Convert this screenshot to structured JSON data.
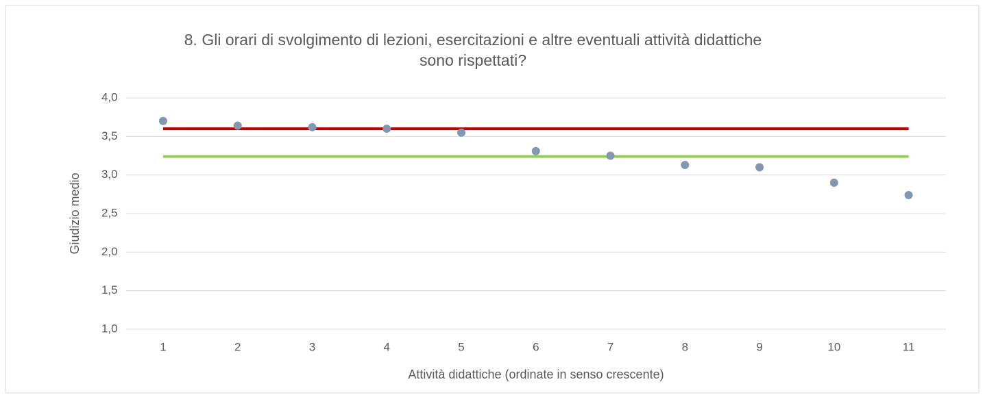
{
  "chart_data": {
    "type": "scatter",
    "title": [
      "8. Gli orari di svolgimento di lezioni, esercitazioni e altre eventuali attività didattiche",
      "sono rispettati?"
    ],
    "xlabel": "Attività didattiche (ordinate in senso crescente)",
    "ylabel": "Giudizio medio",
    "x": [
      1,
      2,
      3,
      4,
      5,
      6,
      7,
      8,
      9,
      10,
      11
    ],
    "series": [
      {
        "type": "scatter",
        "color": "#8497b0",
        "values": [
          3.7,
          3.64,
          3.62,
          3.6,
          3.55,
          3.31,
          3.25,
          3.13,
          3.1,
          2.9,
          2.74
        ]
      },
      {
        "type": "line",
        "color": "#c00000",
        "values": [
          3.6,
          3.6,
          3.6,
          3.6,
          3.6,
          3.6,
          3.6,
          3.6,
          3.6,
          3.6,
          3.6
        ]
      },
      {
        "type": "line",
        "color": "#92d050",
        "values": [
          3.24,
          3.24,
          3.24,
          3.24,
          3.24,
          3.24,
          3.24,
          3.24,
          3.24,
          3.24,
          3.24
        ]
      }
    ],
    "xlim": [
      0.5,
      11.5
    ],
    "xticks": [
      1,
      2,
      3,
      4,
      5,
      6,
      7,
      8,
      9,
      10,
      11
    ],
    "ylim": [
      1,
      4
    ],
    "yticks": [
      {
        "value": 1,
        "label": "1,0"
      },
      {
        "value": 1.5,
        "label": "1,5"
      },
      {
        "value": 2,
        "label": "2,0"
      },
      {
        "value": 2.5,
        "label": "2,5"
      },
      {
        "value": 3,
        "label": "3,0"
      },
      {
        "value": 3.5,
        "label": "3,5"
      },
      {
        "value": 4,
        "label": "4,0"
      }
    ],
    "grid": true
  }
}
